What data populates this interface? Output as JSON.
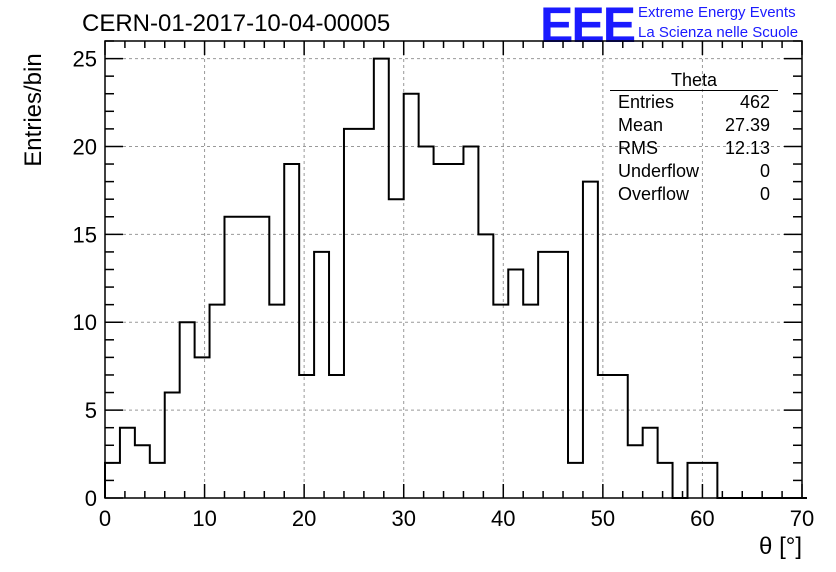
{
  "header": {
    "title": "CERN-01-2017-10-04-00005",
    "logo_mark": "EEE",
    "logo_line1": "Extreme Energy Events",
    "logo_line2": "La Scienza nelle Scuole",
    "logo_color": "#1a1aff"
  },
  "stats": {
    "title": "Theta",
    "rows": [
      {
        "label": "Entries",
        "value": "462"
      },
      {
        "label": "Mean",
        "value": "27.39"
      },
      {
        "label": "RMS",
        "value": "12.13"
      },
      {
        "label": "Underflow",
        "value": "0"
      },
      {
        "label": "Overflow",
        "value": "0"
      }
    ]
  },
  "chart_data": {
    "type": "histogram",
    "xlabel": "θ [°]",
    "ylabel": "Entries/bin",
    "xlim": [
      0,
      70
    ],
    "ylim": [
      0,
      26
    ],
    "bin_width": 1.5,
    "bin_start": 0,
    "x_ticks": [
      0,
      10,
      20,
      30,
      40,
      50,
      60,
      70
    ],
    "y_ticks": [
      0,
      5,
      10,
      15,
      20,
      25
    ],
    "grid": true,
    "values": [
      2,
      4,
      3,
      2,
      6,
      10,
      8,
      11,
      16,
      16,
      16,
      11,
      19,
      7,
      14,
      7,
      21,
      21,
      25,
      17,
      23,
      20,
      19,
      19,
      20,
      15,
      11,
      13,
      11,
      14,
      14,
      2,
      18,
      7,
      7,
      3,
      4,
      2,
      0,
      2,
      2,
      0,
      0,
      0,
      0,
      0,
      0
    ]
  }
}
